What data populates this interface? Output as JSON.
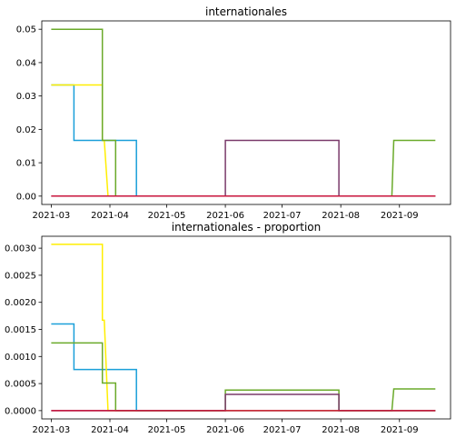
{
  "chart_data": [
    {
      "type": "line",
      "title": "internationales",
      "xlabel": "",
      "ylabel": "",
      "xlim": [
        "2021-02-24",
        "2021-09-28"
      ],
      "ylim": [
        -0.0025,
        0.0525
      ],
      "x_ticks": [
        "2021-03",
        "2021-04",
        "2021-05",
        "2021-06",
        "2021-07",
        "2021-08",
        "2021-09"
      ],
      "y_ticks": [
        "0.00",
        "0.01",
        "0.02",
        "0.03",
        "0.04",
        "0.05"
      ],
      "grid": false,
      "series": [
        {
          "color": "#1a9fd9",
          "points": [
            [
              "2021-03-01",
              0.0333
            ],
            [
              "2021-03-13",
              0.0333
            ],
            [
              "2021-03-13",
              0.0167
            ],
            [
              "2021-04-15",
              0.0167
            ],
            [
              "2021-04-15",
              0.0
            ],
            [
              "2021-09-20",
              0.0
            ]
          ]
        },
        {
          "color": "#ffee00",
          "points": [
            [
              "2021-03-01",
              0.0333
            ],
            [
              "2021-03-28",
              0.0333
            ],
            [
              "2021-03-28",
              0.0167
            ],
            [
              "2021-03-29",
              0.0167
            ],
            [
              "2021-03-31",
              0.0
            ],
            [
              "2021-09-20",
              0.0
            ]
          ]
        },
        {
          "color": "#6aaa2a",
          "points": [
            [
              "2021-03-01",
              0.05
            ],
            [
              "2021-03-28",
              0.05
            ],
            [
              "2021-03-28",
              0.0167
            ],
            [
              "2021-04-04",
              0.0167
            ],
            [
              "2021-04-04",
              0.0
            ],
            [
              "2021-08-28",
              0.0
            ],
            [
              "2021-08-29",
              0.0167
            ],
            [
              "2021-09-20",
              0.0167
            ]
          ]
        },
        {
          "color": "#7a3a6a",
          "points": [
            [
              "2021-03-01",
              0.0
            ],
            [
              "2021-06-01",
              0.0
            ],
            [
              "2021-06-01",
              0.0167
            ],
            [
              "2021-07-31",
              0.0167
            ],
            [
              "2021-07-31",
              0.0
            ],
            [
              "2021-09-20",
              0.0
            ]
          ]
        },
        {
          "color": "#c8143c",
          "points": [
            [
              "2021-03-01",
              0.0
            ],
            [
              "2021-09-20",
              0.0
            ]
          ]
        }
      ]
    },
    {
      "type": "line",
      "title": "internationales - proportion",
      "xlabel": "",
      "ylabel": "",
      "xlim": [
        "2021-02-24",
        "2021-09-28"
      ],
      "ylim": [
        -0.000153,
        0.00322
      ],
      "x_ticks": [
        "2021-03",
        "2021-04",
        "2021-05",
        "2021-06",
        "2021-07",
        "2021-08",
        "2021-09"
      ],
      "y_ticks": [
        "0.0000",
        "0.0005",
        "0.0010",
        "0.0015",
        "0.0020",
        "0.0025",
        "0.0030"
      ],
      "grid": false,
      "series": [
        {
          "color": "#1a9fd9",
          "points": [
            [
              "2021-03-01",
              0.0016
            ],
            [
              "2021-03-13",
              0.0016
            ],
            [
              "2021-03-13",
              0.00076
            ],
            [
              "2021-04-15",
              0.00076
            ],
            [
              "2021-04-15",
              0.0
            ],
            [
              "2021-09-20",
              0.0
            ]
          ]
        },
        {
          "color": "#ffee00",
          "points": [
            [
              "2021-03-01",
              0.00307
            ],
            [
              "2021-03-28",
              0.00307
            ],
            [
              "2021-03-28",
              0.00167
            ],
            [
              "2021-03-29",
              0.00167
            ],
            [
              "2021-03-31",
              0.0
            ],
            [
              "2021-09-20",
              0.0
            ]
          ]
        },
        {
          "color": "#6aaa2a",
          "points": [
            [
              "2021-03-01",
              0.00125
            ],
            [
              "2021-03-28",
              0.00125
            ],
            [
              "2021-03-28",
              0.00051
            ],
            [
              "2021-04-04",
              0.00051
            ],
            [
              "2021-04-04",
              0.0
            ],
            [
              "2021-06-01",
              0.0
            ],
            [
              "2021-06-01",
              0.00038
            ],
            [
              "2021-07-31",
              0.00038
            ],
            [
              "2021-07-31",
              0.0
            ],
            [
              "2021-08-28",
              0.0
            ],
            [
              "2021-08-29",
              0.0004
            ],
            [
              "2021-09-20",
              0.0004
            ]
          ]
        },
        {
          "color": "#7a3a6a",
          "points": [
            [
              "2021-03-01",
              0.0
            ],
            [
              "2021-06-01",
              0.0
            ],
            [
              "2021-06-01",
              0.0003
            ],
            [
              "2021-07-31",
              0.0003
            ],
            [
              "2021-07-31",
              0.0
            ],
            [
              "2021-09-20",
              0.0
            ]
          ]
        },
        {
          "color": "#c8143c",
          "points": [
            [
              "2021-03-01",
              0.0
            ],
            [
              "2021-09-20",
              0.0
            ]
          ]
        }
      ]
    }
  ]
}
